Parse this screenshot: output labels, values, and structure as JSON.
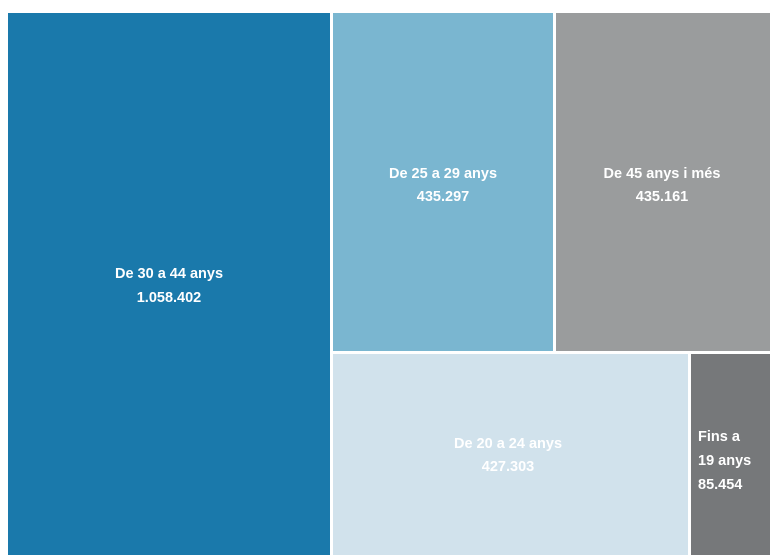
{
  "chart_data": {
    "type": "treemap",
    "title": "",
    "items": [
      {
        "label": "De 30 a 44 anys",
        "value_text": "1.058.402",
        "value": 1058402,
        "color": "#1a79ab",
        "text_color": "#ffffff"
      },
      {
        "label": "De 25 a 29 anys",
        "value_text": "435.297",
        "value": 435297,
        "color": "#7ab6d0",
        "text_color": "#ffffff"
      },
      {
        "label": "De 45 anys i més",
        "value_text": "435.161",
        "value": 435161,
        "color": "#9a9c9d",
        "text_color": "#ffffff"
      },
      {
        "label": "De 20 a 24 anys",
        "value_text": "427.303",
        "value": 427303,
        "color": "#d1e2ec",
        "text_color": "#ffffff"
      },
      {
        "label": "Fins a 19 anys",
        "value_text": "85.454",
        "value": 85454,
        "color": "#76787a",
        "text_color": "#ffffff",
        "label_lines": [
          "Fins a",
          "19 anys"
        ]
      }
    ]
  }
}
